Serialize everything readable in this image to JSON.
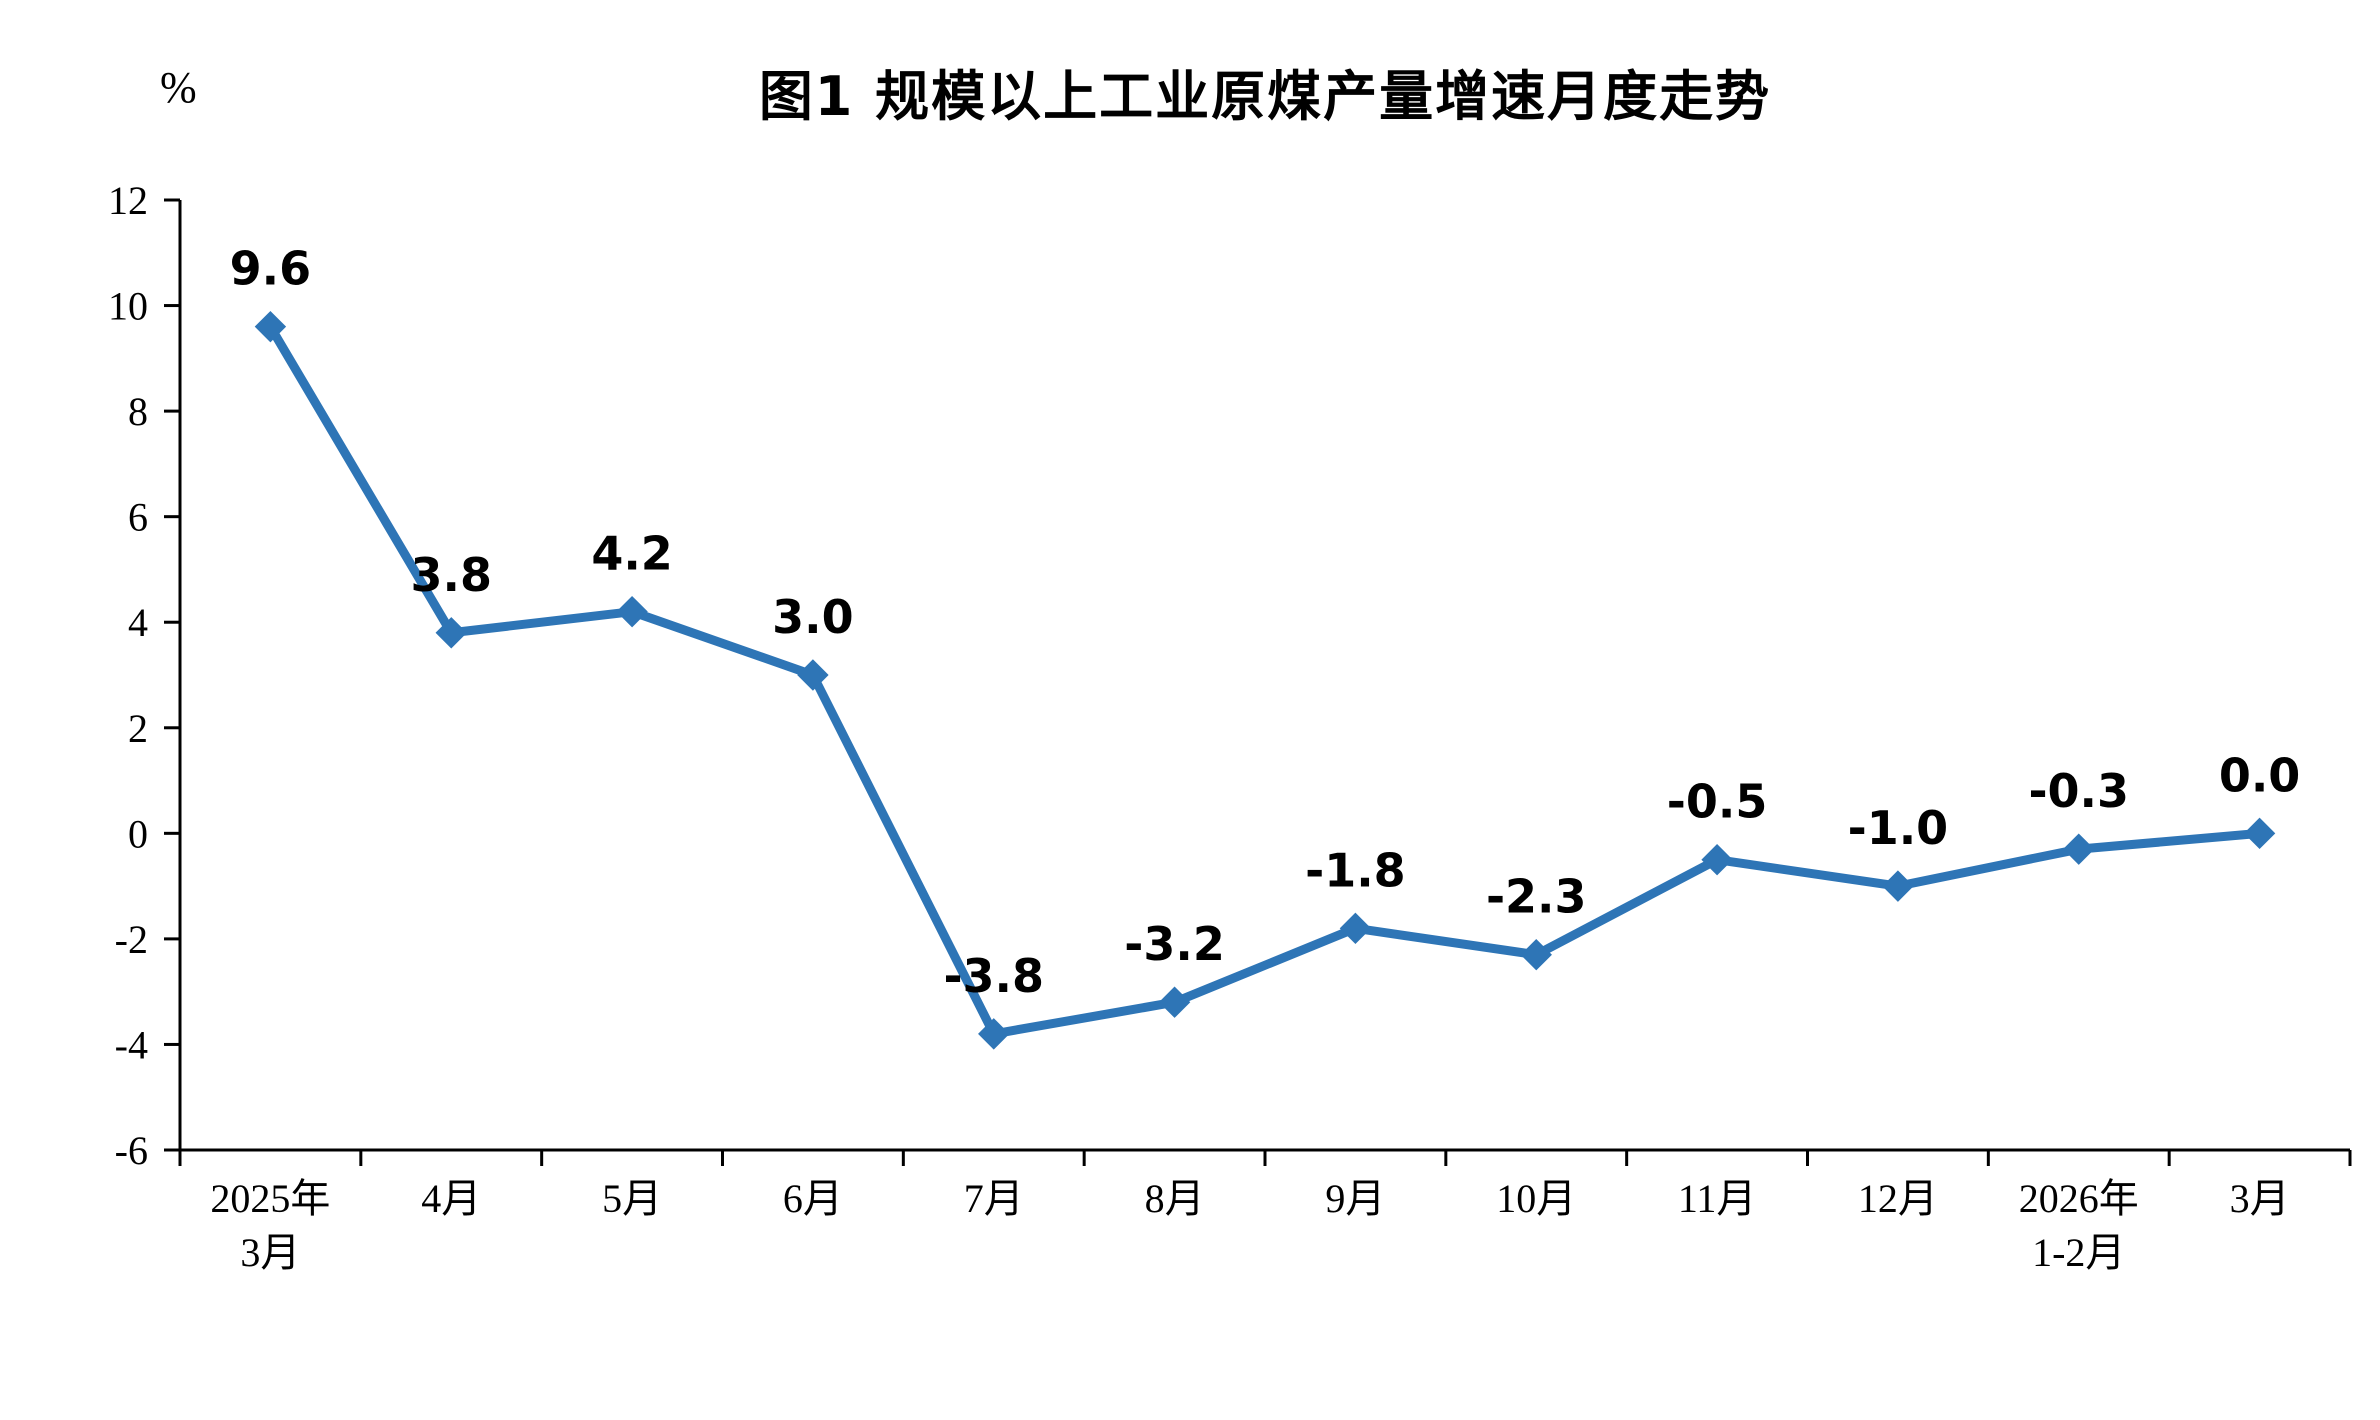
{
  "chart_data": {
    "type": "line",
    "title": "图1  规模以上工业原煤产量增速月度走势",
    "ylabel": "%",
    "categories": [
      [
        "2025年",
        "3月"
      ],
      [
        "4月"
      ],
      [
        "5月"
      ],
      [
        "6月"
      ],
      [
        "7月"
      ],
      [
        "8月"
      ],
      [
        "9月"
      ],
      [
        "10月"
      ],
      [
        "11月"
      ],
      [
        "12月"
      ],
      [
        "2026年",
        "1-2月"
      ],
      [
        "3月"
      ]
    ],
    "values": [
      9.6,
      3.8,
      4.2,
      3.0,
      -3.8,
      -3.2,
      -1.8,
      -2.3,
      -0.5,
      -1.0,
      -0.3,
      0.0
    ],
    "labels": [
      "9.6",
      "3.8",
      "4.2",
      "3.0",
      "-3.8",
      "-3.2",
      "-1.8",
      "-2.3",
      "-0.5",
      "-1.0",
      "-0.3",
      "0.0"
    ],
    "ylim": [
      -6,
      12
    ],
    "ytick_step": 2,
    "grid": false,
    "legend": "none",
    "line_color": "#2E75B6",
    "marker": "diamond",
    "axis_color": "#000000"
  }
}
